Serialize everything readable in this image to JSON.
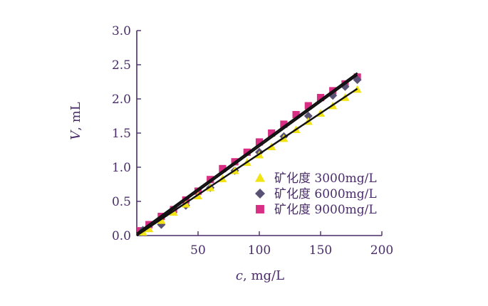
{
  "chart_data": {
    "type": "scatter",
    "xlabel_var": "c",
    "xlabel_unit": ", mg/L",
    "ylabel_var": "V",
    "ylabel_unit": ", mL",
    "xlim": [
      0,
      200
    ],
    "ylim": [
      0,
      3.0
    ],
    "x_ticks": [
      "50",
      "100",
      "150",
      "200"
    ],
    "y_ticks": [
      "0.0",
      "0.5",
      "1.0",
      "1.5",
      "2.0",
      "2.5",
      "3.0"
    ],
    "grid": false,
    "legend_position": "bottom-right",
    "series": [
      {
        "name": "矿化度 3000mg/L",
        "marker": "triangle",
        "color": "#f2e414",
        "line_color": "#111111",
        "fit": [
          0,
          180,
          0.0,
          2.15
        ],
        "points": [
          [
            5,
            0.05
          ],
          [
            10,
            0.1
          ],
          [
            20,
            0.22
          ],
          [
            30,
            0.34
          ],
          [
            40,
            0.46
          ],
          [
            50,
            0.58
          ],
          [
            60,
            0.7
          ],
          [
            70,
            0.83
          ],
          [
            80,
            0.95
          ],
          [
            90,
            1.07
          ],
          [
            100,
            1.18
          ],
          [
            110,
            1.3
          ],
          [
            120,
            1.42
          ],
          [
            130,
            1.55
          ],
          [
            140,
            1.67
          ],
          [
            150,
            1.79
          ],
          [
            160,
            1.9
          ],
          [
            170,
            2.02
          ],
          [
            180,
            2.14
          ]
        ]
      },
      {
        "name": "矿化度 6000mg/L",
        "marker": "diamond",
        "color": "#5a5275",
        "line_color": "#111111",
        "fit": [
          0,
          180,
          0.0,
          2.35
        ],
        "points": [
          [
            5,
            0.08
          ],
          [
            20,
            0.16
          ],
          [
            40,
            0.44
          ],
          [
            60,
            0.7
          ],
          [
            80,
            0.95
          ],
          [
            100,
            1.22
          ],
          [
            120,
            1.45
          ],
          [
            140,
            1.75
          ],
          [
            160,
            2.05
          ],
          [
            170,
            2.18
          ],
          [
            180,
            2.28
          ]
        ]
      },
      {
        "name": "矿化度 9000mg/L",
        "marker": "square",
        "color": "#d82e84",
        "line_color": "#111111",
        "fit": [
          0,
          180,
          0.03,
          2.38
        ],
        "points": [
          [
            3,
            0.07
          ],
          [
            10,
            0.16
          ],
          [
            20,
            0.28
          ],
          [
            30,
            0.38
          ],
          [
            40,
            0.52
          ],
          [
            50,
            0.65
          ],
          [
            60,
            0.82
          ],
          [
            70,
            0.98
          ],
          [
            80,
            1.08
          ],
          [
            90,
            1.22
          ],
          [
            100,
            1.37
          ],
          [
            110,
            1.5
          ],
          [
            120,
            1.63
          ],
          [
            130,
            1.77
          ],
          [
            140,
            1.9
          ],
          [
            150,
            2.02
          ],
          [
            160,
            2.12
          ],
          [
            170,
            2.22
          ],
          [
            180,
            2.32
          ]
        ]
      }
    ]
  }
}
